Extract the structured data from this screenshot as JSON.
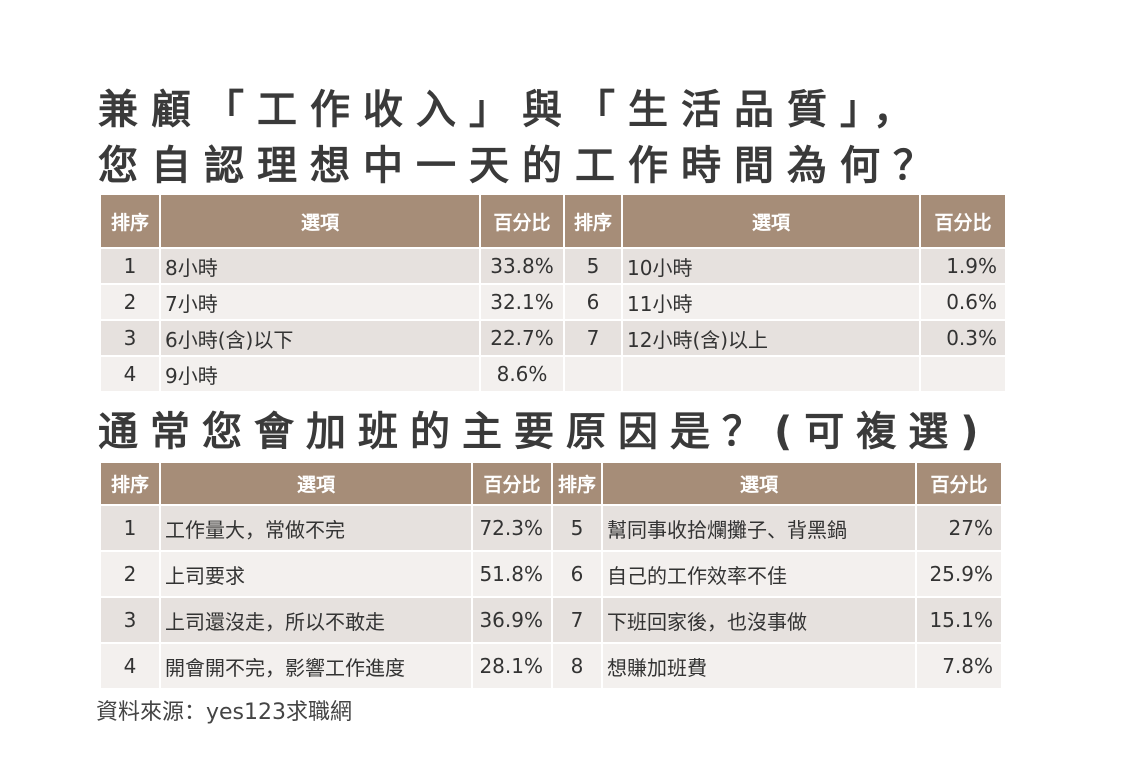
{
  "chart_data": [
    {
      "type": "table",
      "title_lines": [
        "兼顧「工作收入」與「生活品質」，",
        "您自認理想中一天的工作時間為何？"
      ],
      "headers": [
        "排序",
        "選項",
        "百分比",
        "排序",
        "選項",
        "百分比"
      ],
      "rows": [
        {
          "left": {
            "rank": "1",
            "option": "8小時",
            "percent": "33.8%"
          },
          "right": {
            "rank": "5",
            "option": "10小時",
            "percent": "1.9%"
          }
        },
        {
          "left": {
            "rank": "2",
            "option": "7小時",
            "percent": "32.1%"
          },
          "right": {
            "rank": "6",
            "option": "11小時",
            "percent": "0.6%"
          }
        },
        {
          "left": {
            "rank": "3",
            "option": "6小時(含)以下",
            "percent": "22.7%"
          },
          "right": {
            "rank": "7",
            "option": "12小時(含)以上",
            "percent": "0.3%"
          }
        },
        {
          "left": {
            "rank": "4",
            "option": "9小時",
            "percent": "8.6%"
          },
          "right": {
            "rank": "",
            "option": "",
            "percent": ""
          }
        }
      ]
    },
    {
      "type": "table",
      "title_lines": [
        "通常您會加班的主要原因是？(可複選)"
      ],
      "headers": [
        "排序",
        "選項",
        "百分比",
        "排序",
        "選項",
        "百分比"
      ],
      "rows": [
        {
          "left": {
            "rank": "1",
            "option": "工作量大，常做不完",
            "percent": "72.3%"
          },
          "right": {
            "rank": "5",
            "option": "幫同事收拾爛攤子、背黑鍋",
            "percent": "27%"
          }
        },
        {
          "left": {
            "rank": "2",
            "option": "上司要求",
            "percent": "51.8%"
          },
          "right": {
            "rank": "6",
            "option": "自己的工作效率不佳",
            "percent": "25.9%"
          }
        },
        {
          "left": {
            "rank": "3",
            "option": "上司還沒走，所以不敢走",
            "percent": "36.9%"
          },
          "right": {
            "rank": "7",
            "option": "下班回家後，也沒事做",
            "percent": "15.1%"
          }
        },
        {
          "left": {
            "rank": "4",
            "option": "開會開不完，影響工作進度",
            "percent": "28.1%"
          },
          "right": {
            "rank": "8",
            "option": "想賺加班費",
            "percent": "7.8%"
          }
        }
      ]
    }
  ],
  "source": "資料來源：yes123求職網",
  "colors": {
    "header_bg": "#a68d78",
    "row_dark": "#e6e1de",
    "row_light": "#f3f0ee"
  }
}
